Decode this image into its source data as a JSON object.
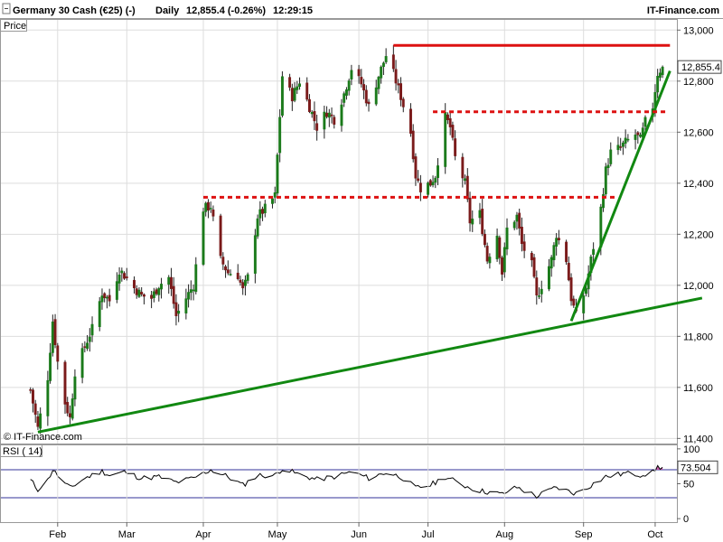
{
  "header": {
    "instrument": "Germany 30 Cash (€25) (-)",
    "timeframe": "Daily",
    "quote": "12,855.4 (-0.26%)",
    "time": "12:29:15",
    "brand": "IT-Finance.com"
  },
  "chart_data": [
    {
      "type": "candlestick",
      "title": "Germany 30 Cash (€25) (-)",
      "panel_label": "Price",
      "watermark": "© IT-Finance.com",
      "x_ticks": [
        "Feb",
        "Mar",
        "Apr",
        "May",
        "Jun",
        "Jul",
        "Aug",
        "Sep",
        "Oct"
      ],
      "y_ticks": [
        "13,000",
        "12,800",
        "12,600",
        "12,400",
        "12,200",
        "12,000",
        "11,800",
        "11,600",
        "11,400"
      ],
      "ylim": [
        11380,
        13040
      ],
      "last_price_label": "12,855.4",
      "last_price": 12855.4,
      "colors": {
        "up": "#1a7a1a",
        "down": "#7a1a1a",
        "support": "#118811",
        "resistance": "#dd1111"
      },
      "close_anchors": [
        [
          "2019-01-21",
          11590
        ],
        [
          "2019-01-24",
          11440
        ],
        [
          "2019-01-28",
          11640
        ],
        [
          "2019-01-30",
          11860
        ],
        [
          "2019-02-01",
          11700
        ],
        [
          "2019-02-04",
          11540
        ],
        [
          "2019-02-06",
          11480
        ],
        [
          "2019-02-08",
          11660
        ],
        [
          "2019-02-12",
          11760
        ],
        [
          "2019-02-15",
          11830
        ],
        [
          "2019-02-19",
          11970
        ],
        [
          "2019-02-22",
          11940
        ],
        [
          "2019-02-26",
          12060
        ],
        [
          "2019-02-28",
          12040
        ],
        [
          "2019-03-04",
          11990
        ],
        [
          "2019-03-07",
          11960
        ],
        [
          "2019-03-11",
          11950
        ],
        [
          "2019-03-14",
          12000
        ],
        [
          "2019-03-18",
          12030
        ],
        [
          "2019-03-21",
          11880
        ],
        [
          "2019-03-25",
          11950
        ],
        [
          "2019-03-28",
          12000
        ],
        [
          "2019-04-01",
          12300
        ],
        [
          "2019-04-04",
          12310
        ],
        [
          "2019-04-08",
          12100
        ],
        [
          "2019-04-11",
          12050
        ],
        [
          "2019-04-15",
          12040
        ],
        [
          "2019-04-17",
          11980
        ],
        [
          "2019-04-19",
          12030
        ],
        [
          "2019-04-23",
          12270
        ],
        [
          "2019-04-26",
          12300
        ],
        [
          "2019-04-30",
          12350
        ],
        [
          "2019-05-03",
          12820
        ],
        [
          "2019-05-07",
          12740
        ],
        [
          "2019-05-10",
          12800
        ],
        [
          "2019-05-14",
          12700
        ],
        [
          "2019-05-17",
          12620
        ],
        [
          "2019-05-21",
          12680
        ],
        [
          "2019-05-24",
          12650
        ],
        [
          "2019-05-28",
          12750
        ],
        [
          "2019-05-31",
          12850
        ],
        [
          "2019-06-04",
          12790
        ],
        [
          "2019-06-07",
          12700
        ],
        [
          "2019-06-11",
          12820
        ],
        [
          "2019-06-14",
          12900
        ],
        [
          "2019-06-17",
          12830
        ],
        [
          "2019-06-20",
          12740
        ],
        [
          "2019-06-24",
          12600
        ],
        [
          "2019-06-26",
          12430
        ],
        [
          "2019-06-28",
          12380
        ],
        [
          "2019-07-02",
          12400
        ],
        [
          "2019-07-04",
          12430
        ],
        [
          "2019-07-08",
          12660
        ],
        [
          "2019-07-10",
          12620
        ],
        [
          "2019-07-12",
          12500
        ],
        [
          "2019-07-16",
          12400
        ],
        [
          "2019-07-18",
          12250
        ],
        [
          "2019-07-22",
          12280
        ],
        [
          "2019-07-25",
          12100
        ],
        [
          "2019-07-29",
          12200
        ],
        [
          "2019-07-31",
          12050
        ],
        [
          "2019-08-02",
          12220
        ],
        [
          "2019-08-06",
          12270
        ],
        [
          "2019-08-08",
          12160
        ],
        [
          "2019-08-12",
          12080
        ],
        [
          "2019-08-14",
          11950
        ],
        [
          "2019-08-16",
          12000
        ],
        [
          "2019-08-20",
          12100
        ],
        [
          "2019-08-22",
          12200
        ],
        [
          "2019-08-26",
          12100
        ],
        [
          "2019-08-28",
          11950
        ],
        [
          "2019-08-30",
          11880
        ],
        [
          "2019-09-03",
          11990
        ],
        [
          "2019-09-05",
          12100
        ],
        [
          "2019-09-09",
          12300
        ],
        [
          "2019-09-11",
          12450
        ],
        [
          "2019-09-13",
          12520
        ],
        [
          "2019-09-17",
          12540
        ],
        [
          "2019-09-19",
          12560
        ],
        [
          "2019-09-23",
          12590
        ],
        [
          "2019-09-25",
          12570
        ],
        [
          "2019-09-27",
          12640
        ],
        [
          "2019-09-30",
          12700
        ],
        [
          "2019-10-02",
          12830
        ],
        [
          "2019-10-04",
          12855.4
        ]
      ],
      "trend_lines": [
        {
          "style": "solid",
          "color": "#118811",
          "from": [
            "2019-01-24",
            11425
          ],
          "to": [
            "2019-10-20",
            11950
          ]
        },
        {
          "style": "solid",
          "color": "#118811",
          "from": [
            "2019-08-28",
            11860
          ],
          "to": [
            "2019-10-07",
            12840
          ]
        },
        {
          "style": "solid",
          "color": "#dd1111",
          "from": [
            "2019-06-17",
            12940
          ],
          "to": [
            "2019-10-07",
            12940
          ]
        },
        {
          "style": "dashed",
          "color": "#dd1111",
          "from": [
            "2019-07-03",
            12680
          ],
          "to": [
            "2019-10-06",
            12680
          ]
        },
        {
          "style": "dashed",
          "color": "#dd1111",
          "from": [
            "2019-04-01",
            12345
          ],
          "to": [
            "2019-09-16",
            12345
          ]
        }
      ]
    },
    {
      "type": "line",
      "title": "RSI ( 14)",
      "panel_label": "RSI ( 14)",
      "y_ticks": [
        "100",
        "50",
        "0"
      ],
      "ylim": [
        -5,
        105
      ],
      "levels": [
        70,
        30
      ],
      "last_value_label": "73.504",
      "last_value": 73.504,
      "colors": {
        "line": "#000000",
        "levels": "#333399",
        "overbought_fill": "#cc55aa"
      },
      "anchors": [
        [
          "2019-01-21",
          55
        ],
        [
          "2019-01-24",
          42
        ],
        [
          "2019-01-28",
          55
        ],
        [
          "2019-01-30",
          70
        ],
        [
          "2019-02-04",
          50
        ],
        [
          "2019-02-06",
          44
        ],
        [
          "2019-02-12",
          58
        ],
        [
          "2019-02-19",
          68
        ],
        [
          "2019-02-22",
          62
        ],
        [
          "2019-02-28",
          67
        ],
        [
          "2019-03-07",
          58
        ],
        [
          "2019-03-14",
          60
        ],
        [
          "2019-03-21",
          52
        ],
        [
          "2019-03-28",
          58
        ],
        [
          "2019-04-04",
          70
        ],
        [
          "2019-04-11",
          60
        ],
        [
          "2019-04-17",
          48
        ],
        [
          "2019-04-23",
          62
        ],
        [
          "2019-04-30",
          62
        ],
        [
          "2019-05-03",
          72
        ],
        [
          "2019-05-10",
          63
        ],
        [
          "2019-05-17",
          56
        ],
        [
          "2019-05-24",
          60
        ],
        [
          "2019-05-31",
          67
        ],
        [
          "2019-06-07",
          58
        ],
        [
          "2019-06-14",
          66
        ],
        [
          "2019-06-20",
          60
        ],
        [
          "2019-06-26",
          44
        ],
        [
          "2019-07-02",
          48
        ],
        [
          "2019-07-08",
          60
        ],
        [
          "2019-07-16",
          47
        ],
        [
          "2019-07-22",
          40
        ],
        [
          "2019-07-31",
          35
        ],
        [
          "2019-08-06",
          45
        ],
        [
          "2019-08-14",
          32
        ],
        [
          "2019-08-22",
          45
        ],
        [
          "2019-08-28",
          38
        ],
        [
          "2019-08-30",
          36
        ],
        [
          "2019-09-05",
          48
        ],
        [
          "2019-09-11",
          60
        ],
        [
          "2019-09-19",
          65
        ],
        [
          "2019-09-25",
          63
        ],
        [
          "2019-09-30",
          66
        ],
        [
          "2019-10-02",
          74
        ],
        [
          "2019-10-04",
          73.504
        ]
      ]
    }
  ]
}
